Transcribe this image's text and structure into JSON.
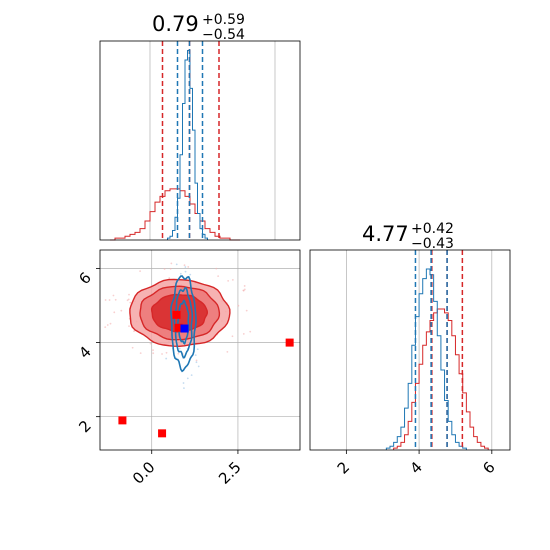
{
  "chart_data": {
    "type": "corner",
    "grid": true,
    "panels": {
      "top_left": {
        "title": {
          "value": "0.79",
          "sup": "+0.59",
          "sub": "−0.54"
        },
        "xlim": [
          -1.0,
          3.0
        ],
        "blue_quantiles": [
          0.55,
          0.79,
          1.05
        ],
        "red_quantiles": [
          0.25,
          0.79,
          1.38
        ],
        "blue_hist": {
          "x0": 0.35,
          "bin_width": 0.05,
          "counts": [
            0.01,
            0.02,
            0.05,
            0.12,
            0.22,
            0.45,
            0.72,
            0.95,
            1.0,
            0.8,
            0.58,
            0.3,
            0.14,
            0.06,
            0.03,
            0.01
          ]
        },
        "red_hist": {
          "x0": -0.8,
          "bin_width": 0.1,
          "counts": [
            0.0,
            0.01,
            0.01,
            0.02,
            0.03,
            0.04,
            0.06,
            0.1,
            0.15,
            0.2,
            0.23,
            0.26,
            0.27,
            0.27,
            0.26,
            0.23,
            0.19,
            0.14,
            0.1,
            0.06,
            0.04,
            0.02,
            0.01,
            0.01,
            0.0,
            0.0
          ]
        }
      },
      "bottom_right": {
        "title": {
          "value": "4.77",
          "sup": "+0.42",
          "sub": "−0.43"
        },
        "xlim": [
          1.0,
          6.5
        ],
        "xticks": [
          "2",
          "4",
          "6"
        ],
        "xtick_values": [
          2,
          4,
          6
        ],
        "blue_quantiles": [
          3.9,
          4.33,
          4.77
        ],
        "red_quantiles": [
          4.35,
          4.77,
          5.19
        ],
        "blue_hist": {
          "x0": 3.1,
          "bin_width": 0.1,
          "counts": [
            0.01,
            0.02,
            0.04,
            0.07,
            0.12,
            0.22,
            0.35,
            0.55,
            0.7,
            0.82,
            0.9,
            0.95,
            0.92,
            0.78,
            0.6,
            0.42,
            0.26,
            0.15,
            0.08,
            0.04,
            0.02,
            0.01
          ]
        },
        "red_hist": {
          "x0": 3.3,
          "bin_width": 0.1,
          "counts": [
            0.01,
            0.02,
            0.04,
            0.08,
            0.15,
            0.25,
            0.35,
            0.45,
            0.55,
            0.62,
            0.68,
            0.72,
            0.74,
            0.74,
            0.72,
            0.68,
            0.6,
            0.5,
            0.4,
            0.3,
            0.2,
            0.12,
            0.07,
            0.04,
            0.02,
            0.01
          ]
        }
      },
      "bottom_left": {
        "xlim": [
          -1.5,
          4.3
        ],
        "ylim": [
          1.1,
          6.5
        ],
        "xticks": [
          "0.0",
          "2.5"
        ],
        "xtick_values": [
          0.0,
          2.5
        ],
        "yticks": [
          "2",
          "4",
          "6"
        ],
        "ytick_values": [
          2,
          4,
          6
        ],
        "red_contours": [
          {
            "cx": 0.8,
            "cy": 4.8,
            "rx": 1.45,
            "ry": 0.9
          },
          {
            "cx": 0.8,
            "cy": 4.8,
            "rx": 1.15,
            "ry": 0.72
          },
          {
            "cx": 0.8,
            "cy": 4.8,
            "rx": 0.8,
            "ry": 0.5
          }
        ],
        "blue_contours": [
          {
            "cx": 0.92,
            "cy": 4.55,
            "rx": 0.35,
            "ry": 1.25
          },
          {
            "cx": 0.92,
            "cy": 4.55,
            "rx": 0.25,
            "ry": 0.9
          },
          {
            "cx": 0.92,
            "cy": 4.55,
            "rx": 0.15,
            "ry": 0.55
          }
        ],
        "red_points": [
          {
            "x": 0.72,
            "y": 4.75
          },
          {
            "x": 0.78,
            "y": 4.4
          },
          {
            "x": -0.85,
            "y": 1.9
          },
          {
            "x": 0.3,
            "y": 1.55
          },
          {
            "x": 4.0,
            "y": 4.0
          }
        ],
        "blue_points": [
          {
            "x": 0.95,
            "y": 4.38
          }
        ]
      }
    }
  }
}
